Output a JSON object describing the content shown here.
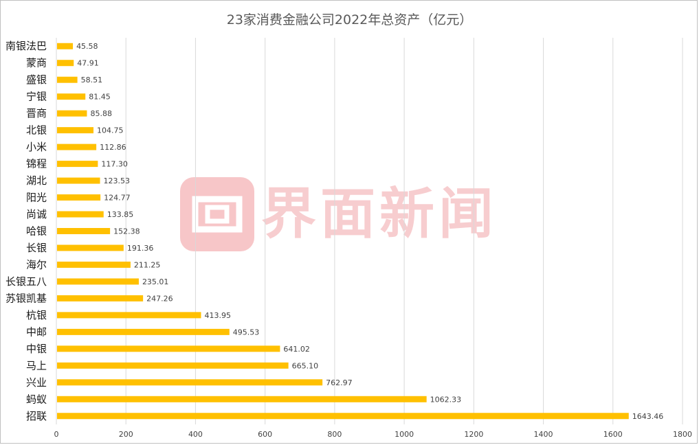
{
  "chart_data": {
    "type": "bar",
    "orientation": "horizontal",
    "title": "23家消费金融公司2022年总资产（亿元）",
    "xlabel": "",
    "ylabel": "",
    "xlim": [
      0,
      1800
    ],
    "xticks": [
      0,
      200,
      400,
      600,
      800,
      1000,
      1200,
      1400,
      1600,
      1800
    ],
    "grid": "vertical",
    "bar_color": "#FFC000",
    "categories": [
      "南银法巴",
      "蒙商",
      "盛银",
      "宁银",
      "晋商",
      "北银",
      "小米",
      "锦程",
      "湖北",
      "阳光",
      "尚诚",
      "哈银",
      "长银",
      "海尔",
      "长银五八",
      "苏银凯基",
      "杭银",
      "中邮",
      "中银",
      "马上",
      "兴业",
      "蚂蚁",
      "招联"
    ],
    "values": [
      45.58,
      47.91,
      58.51,
      81.45,
      85.88,
      104.75,
      112.86,
      117.3,
      123.53,
      124.77,
      133.85,
      152.38,
      191.36,
      211.25,
      235.01,
      247.26,
      413.95,
      495.53,
      641.02,
      665.1,
      762.97,
      1062.33,
      1643.46
    ],
    "value_labels": [
      "45.58",
      "47.91",
      "58.51",
      "81.45",
      "85.88",
      "104.75",
      "112.86",
      "117.30",
      "123.53",
      "124.77",
      "133.85",
      "152.38",
      "191.36",
      "211.25",
      "235.01",
      "247.26",
      "413.95",
      "495.53",
      "641.02",
      "665.10",
      "762.97",
      "1062.33",
      "1643.46"
    ]
  },
  "watermark": {
    "text": "界面新闻",
    "color": "#F2A5A8"
  }
}
